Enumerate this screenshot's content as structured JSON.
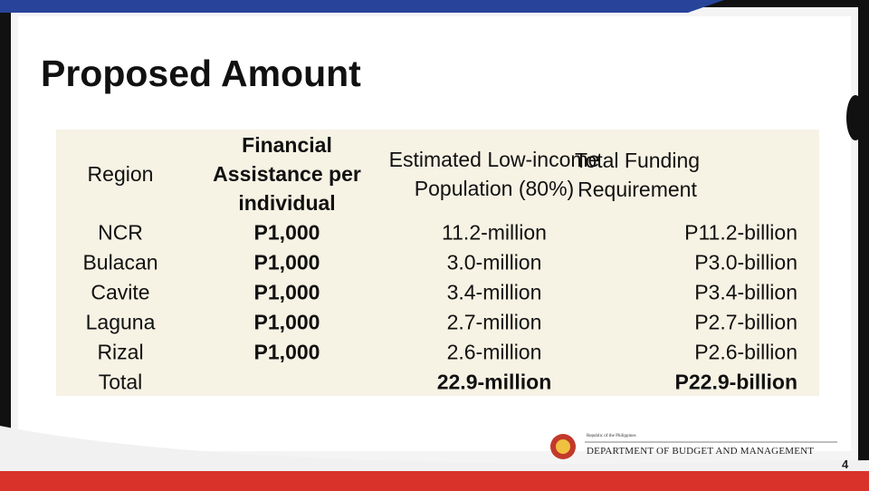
{
  "header": {
    "title": "Proposed Amount"
  },
  "table": {
    "columns": [
      "Region",
      "Financial Assistance per individual",
      "Estimated Low-income Population (80%)",
      "Total Funding Requirement"
    ],
    "rows": [
      [
        "NCR",
        "P1,000",
        "11.2-million",
        "P11.2-billion"
      ],
      [
        "Bulacan",
        "P1,000",
        "3.0-million",
        "P3.0-billion"
      ],
      [
        "Cavite",
        "P1,000",
        "3.4-million",
        "P3.4-billion"
      ],
      [
        "Laguna",
        "P1,000",
        "2.7-million",
        "P2.7-billion"
      ],
      [
        "Rizal",
        "P1,000",
        "2.6-million",
        "P2.6-billion"
      ],
      [
        "Total",
        null,
        "22.9-million",
        "P22.9-billion"
      ]
    ]
  },
  "footer": {
    "country": "Republic of the Philippines",
    "agency": "DEPARTMENT OF BUDGET AND MANAGEMENT",
    "page": 4
  }
}
